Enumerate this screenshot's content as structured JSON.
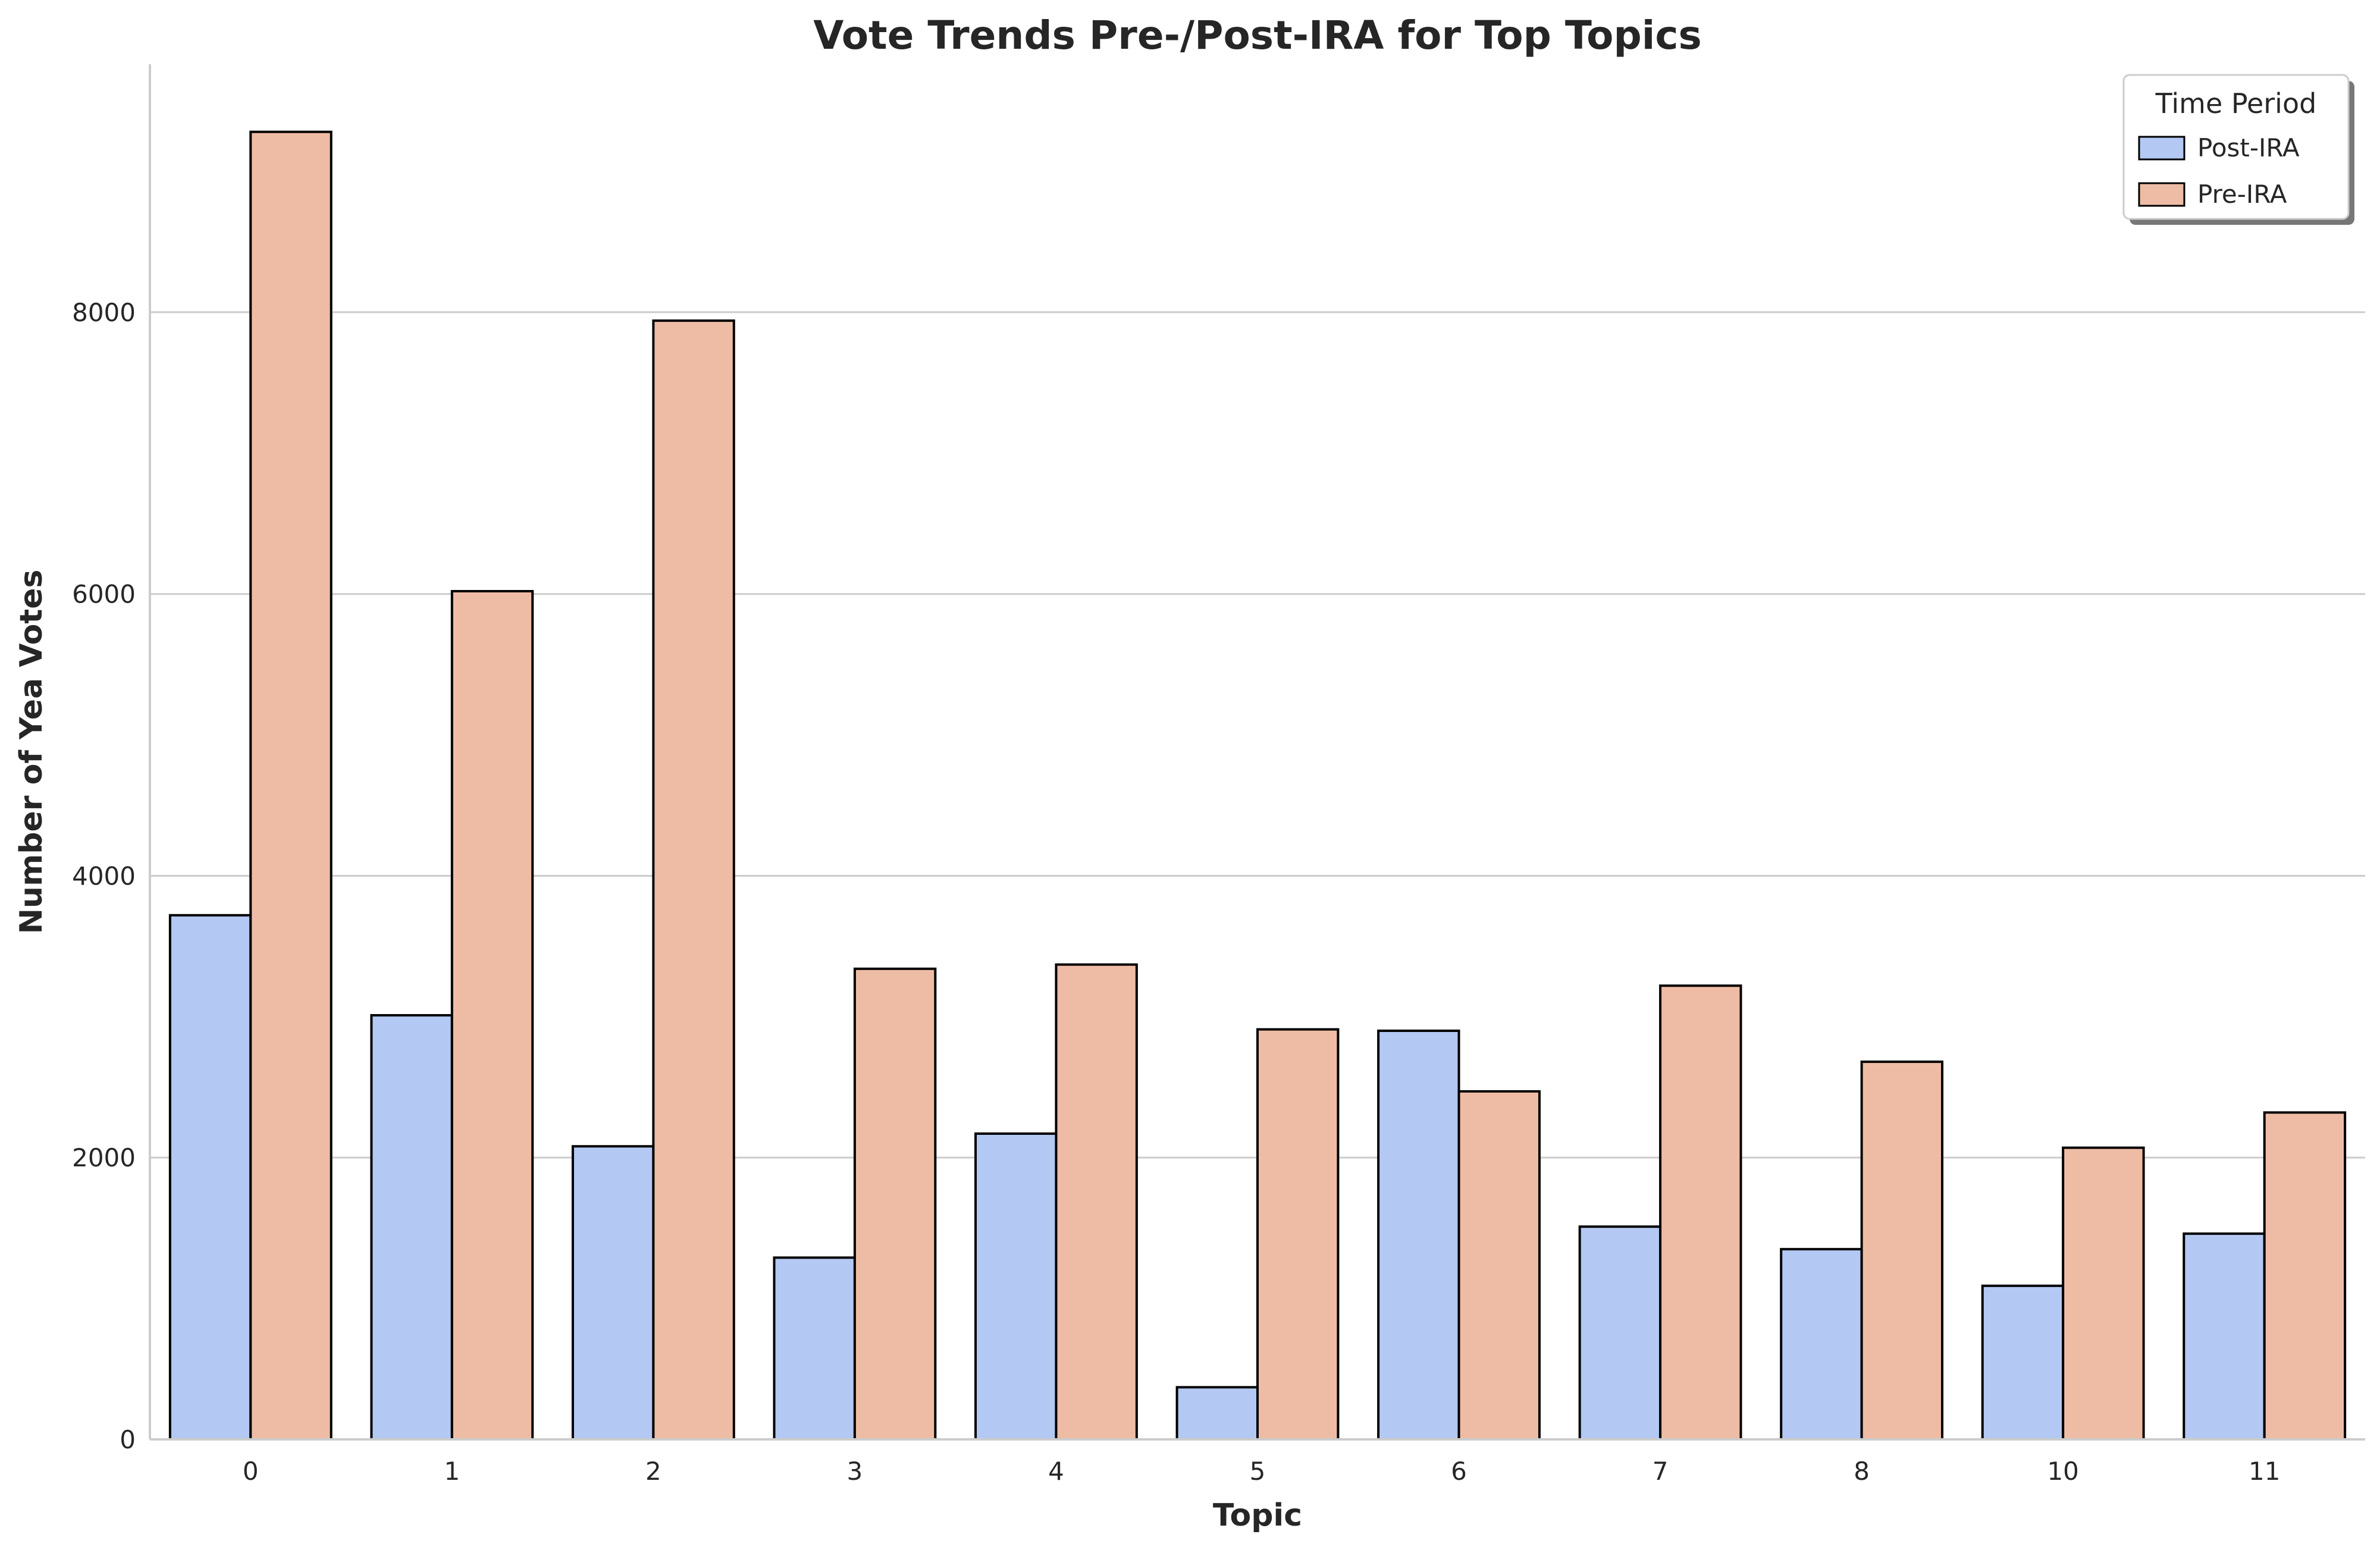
{
  "chart_data": {
    "type": "bar",
    "title": "Vote Trends Pre-/Post-IRA for Top Topics",
    "xlabel": "Topic",
    "ylabel": "Number of Yea Votes",
    "categories": [
      "0",
      "1",
      "2",
      "3",
      "4",
      "5",
      "6",
      "7",
      "8",
      "10",
      "11"
    ],
    "series": [
      {
        "name": "Post-IRA",
        "color": "#b3c8f2",
        "values": [
          3720,
          3010,
          2080,
          1290,
          2170,
          370,
          2900,
          1510,
          1350,
          1090,
          1460
        ]
      },
      {
        "name": "Pre-IRA",
        "color": "#eebca5",
        "values": [
          9280,
          6020,
          7940,
          3340,
          3370,
          2910,
          2470,
          3220,
          2680,
          2070,
          2320
        ]
      }
    ],
    "ylim": [
      0,
      9760
    ],
    "yticks": [
      0,
      2000,
      4000,
      6000,
      8000
    ],
    "grid": "horizontal",
    "legend": {
      "title": "Time Period",
      "placement": "top-right"
    }
  }
}
